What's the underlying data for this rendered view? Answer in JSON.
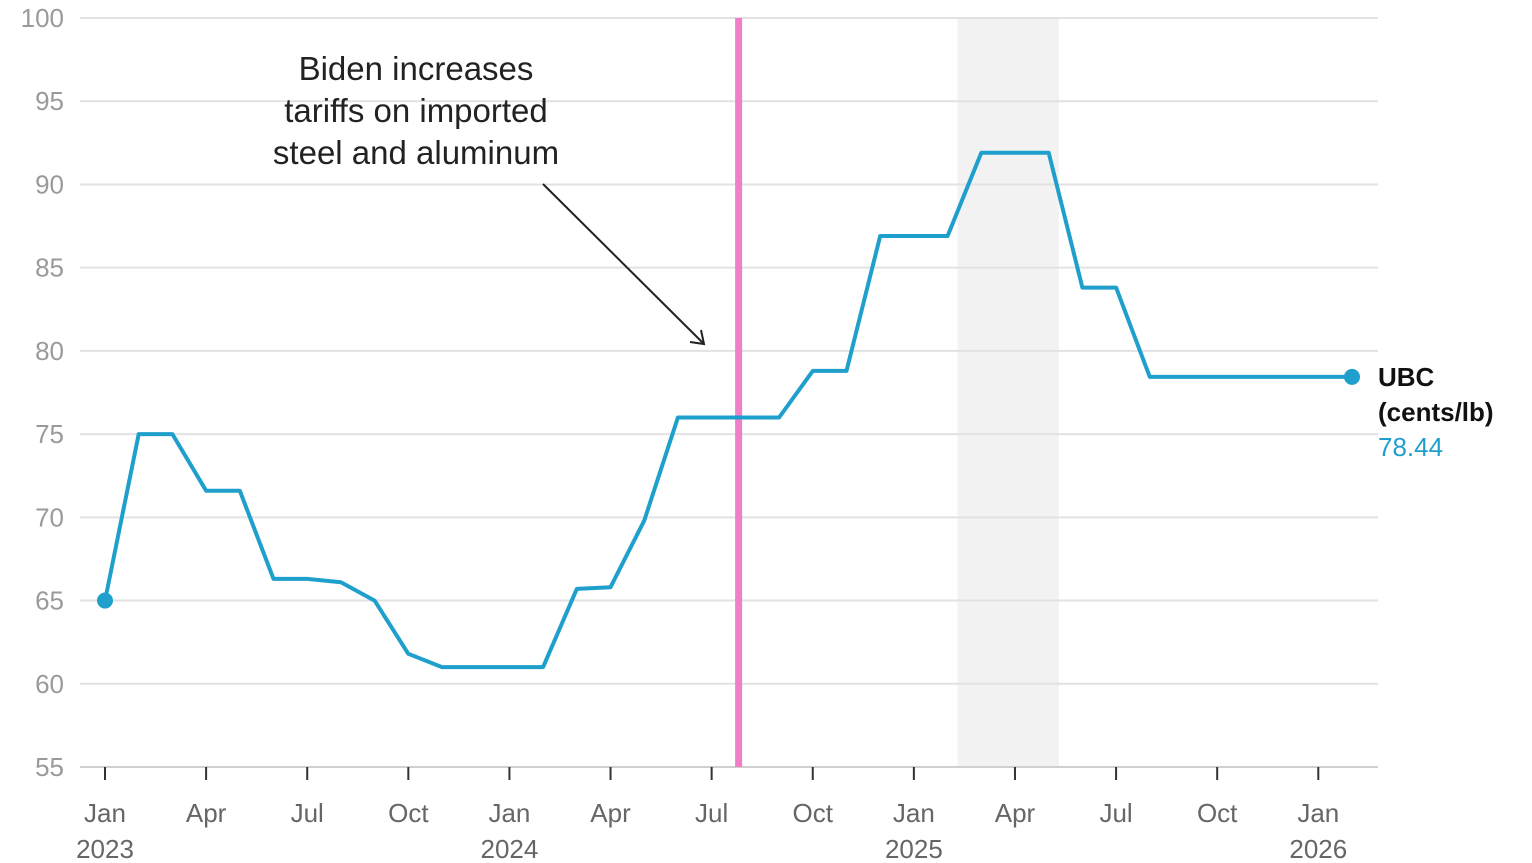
{
  "chart_data": {
    "type": "line",
    "title": "",
    "xlabel": "",
    "ylabel": "",
    "ylim": [
      55,
      100
    ],
    "yticks": [
      100,
      95,
      90,
      85,
      80,
      75,
      70,
      65,
      60,
      55
    ],
    "xlim": [
      "2023-01",
      "2026-02"
    ],
    "grid": true,
    "x_ticks": [
      {
        "date": "2023-01",
        "label": "Jan",
        "year": "2023"
      },
      {
        "date": "2023-04",
        "label": "Apr",
        "year": ""
      },
      {
        "date": "2023-07",
        "label": "Jul",
        "year": ""
      },
      {
        "date": "2023-10",
        "label": "Oct",
        "year": ""
      },
      {
        "date": "2024-01",
        "label": "Jan",
        "year": "2024"
      },
      {
        "date": "2024-04",
        "label": "Apr",
        "year": ""
      },
      {
        "date": "2024-07",
        "label": "Jul",
        "year": ""
      },
      {
        "date": "2024-10",
        "label": "Oct",
        "year": ""
      },
      {
        "date": "2025-01",
        "label": "Jan",
        "year": "2025"
      },
      {
        "date": "2025-04",
        "label": "Apr",
        "year": ""
      },
      {
        "date": "2025-07",
        "label": "Jul",
        "year": ""
      },
      {
        "date": "2025-10",
        "label": "Oct",
        "year": ""
      },
      {
        "date": "2026-01",
        "label": "Jan",
        "year": "2026"
      }
    ],
    "series": [
      {
        "name": "UBC (cents/lb)",
        "label_line1": "UBC",
        "label_line2": "(cents/lb)",
        "last_value_text": "78.44",
        "color": "#1fa0cc",
        "points": [
          {
            "date": "2023-01",
            "value": 65.0
          },
          {
            "date": "2023-02",
            "value": 75.0
          },
          {
            "date": "2023-03",
            "value": 75.0
          },
          {
            "date": "2023-04",
            "value": 71.6
          },
          {
            "date": "2023-05",
            "value": 71.6
          },
          {
            "date": "2023-06",
            "value": 66.3
          },
          {
            "date": "2023-07",
            "value": 66.3
          },
          {
            "date": "2023-08",
            "value": 66.1
          },
          {
            "date": "2023-09",
            "value": 65.0
          },
          {
            "date": "2023-10",
            "value": 61.8
          },
          {
            "date": "2023-11",
            "value": 61.0
          },
          {
            "date": "2023-12",
            "value": 61.0
          },
          {
            "date": "2024-01",
            "value": 61.0
          },
          {
            "date": "2024-02",
            "value": 61.0
          },
          {
            "date": "2024-03",
            "value": 65.7
          },
          {
            "date": "2024-04",
            "value": 65.8
          },
          {
            "date": "2024-05",
            "value": 69.8
          },
          {
            "date": "2024-06",
            "value": 76.0
          },
          {
            "date": "2024-07",
            "value": 76.0
          },
          {
            "date": "2024-08",
            "value": 76.0
          },
          {
            "date": "2024-09",
            "value": 76.0
          },
          {
            "date": "2024-10",
            "value": 78.8
          },
          {
            "date": "2024-11",
            "value": 78.8
          },
          {
            "date": "2024-12",
            "value": 86.9
          },
          {
            "date": "2025-01",
            "value": 86.9
          },
          {
            "date": "2025-02",
            "value": 86.9
          },
          {
            "date": "2025-03",
            "value": 91.9
          },
          {
            "date": "2025-04",
            "value": 91.9
          },
          {
            "date": "2025-05",
            "value": 91.9
          },
          {
            "date": "2025-06",
            "value": 83.8
          },
          {
            "date": "2025-07",
            "value": 83.8
          },
          {
            "date": "2025-08",
            "value": 78.44
          },
          {
            "date": "2025-09",
            "value": 78.44
          },
          {
            "date": "2025-10",
            "value": 78.44
          },
          {
            "date": "2025-11",
            "value": 78.44
          },
          {
            "date": "2025-12",
            "value": 78.44
          },
          {
            "date": "2026-01",
            "value": 78.44
          },
          {
            "date": "2026-02",
            "value": 78.44
          }
        ]
      }
    ],
    "vertical_line": {
      "date": "2024-07-25",
      "color": "#f07fc7"
    },
    "shaded_period": {
      "start": "2025-02-10",
      "end": "2025-05-10",
      "color": "#f2f2f2"
    },
    "annotation": {
      "lines": [
        "Biden increases",
        "tariffs on imported",
        "steel and aluminum"
      ]
    }
  }
}
